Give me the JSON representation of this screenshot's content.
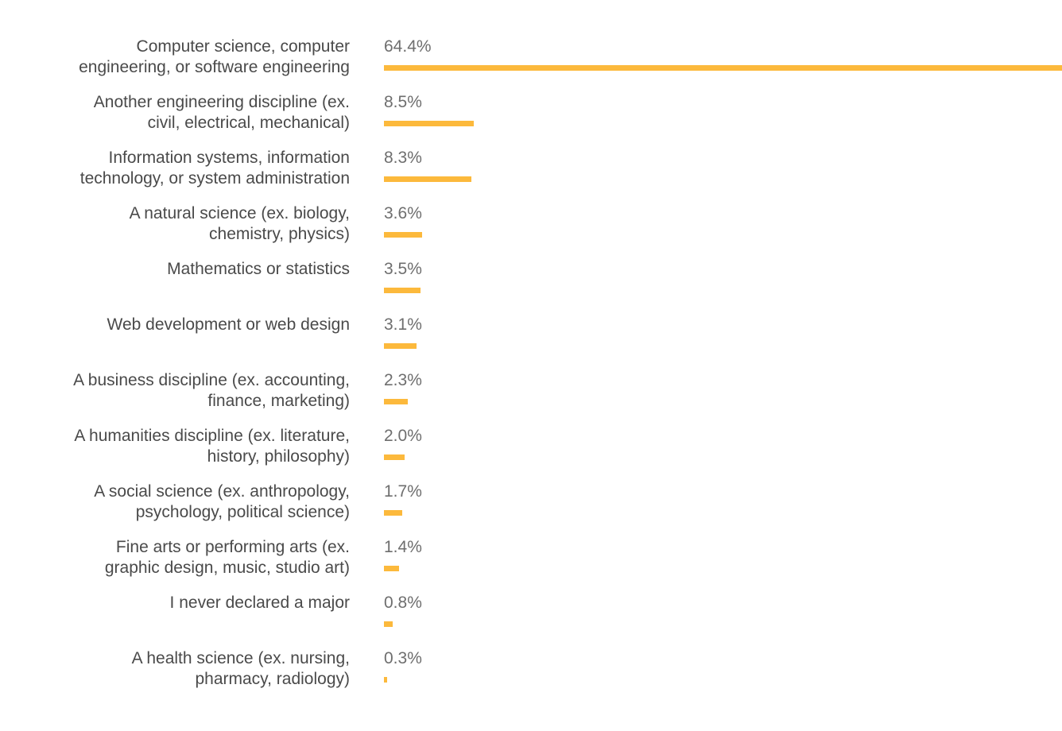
{
  "chart_data": {
    "type": "bar",
    "orientation": "horizontal",
    "title": "",
    "xlabel": "",
    "ylabel": "",
    "grid": false,
    "legend": false,
    "xlim": [
      0,
      64.4
    ],
    "bar_color": "#fcb93c",
    "category_label_color": "#4a4a4a",
    "value_label_color": "#6e6e6e",
    "categories": [
      "Computer science, computer\nengineering, or software engineering",
      "Another engineering discipline (ex.\ncivil, electrical, mechanical)",
      "Information systems, information\ntechnology, or system administration",
      "A natural science (ex. biology,\nchemistry, physics)",
      "Mathematics or statistics",
      "Web development or web design",
      "A business discipline (ex. accounting,\nfinance, marketing)",
      "A humanities discipline (ex. literature,\nhistory, philosophy)",
      "A social science (ex. anthropology,\npsychology, political science)",
      "Fine arts or performing arts (ex.\ngraphic design, music, studio art)",
      "I never declared a major",
      "A health science (ex. nursing,\npharmacy, radiology)"
    ],
    "values": [
      64.4,
      8.5,
      8.3,
      3.6,
      3.5,
      3.1,
      2.3,
      2.0,
      1.7,
      1.4,
      0.8,
      0.3
    ],
    "value_labels": [
      "64.4%",
      "8.5%",
      "8.3%",
      "3.6%",
      "3.5%",
      "3.1%",
      "2.3%",
      "2.0%",
      "1.7%",
      "1.4%",
      "0.8%",
      "0.3%"
    ]
  }
}
